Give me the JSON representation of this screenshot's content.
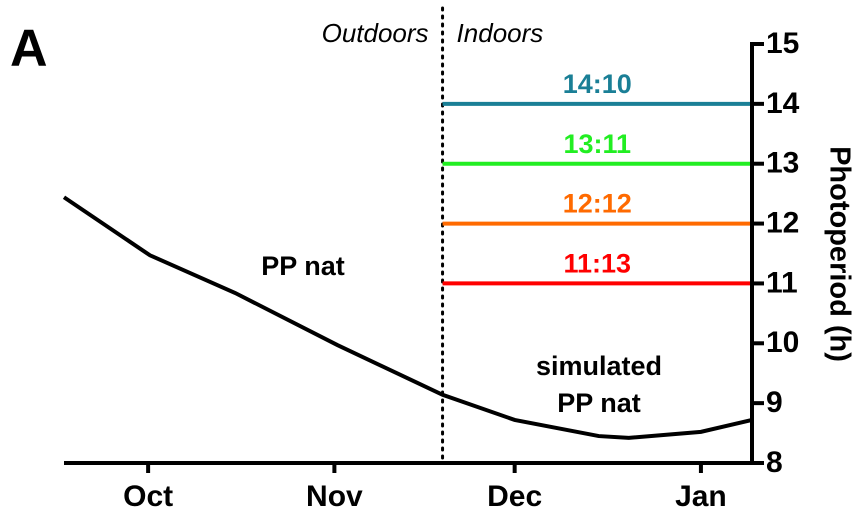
{
  "chart_data": {
    "type": "line",
    "panel_label": "A",
    "ylabel": "Photoperiod (h)",
    "xlim": [
      -14,
      100.5
    ],
    "xticks": [
      {
        "value": 0,
        "label": "Oct"
      },
      {
        "value": 31,
        "label": "Nov"
      },
      {
        "value": 61,
        "label": "Dec"
      },
      {
        "value": 92,
        "label": "Jan"
      }
    ],
    "ylim": [
      8,
      15
    ],
    "yticks": [
      8,
      9,
      10,
      11,
      12,
      13,
      14,
      15
    ],
    "divider_x": 49,
    "divider_labels": [
      "Outdoors",
      "Indoors"
    ],
    "annotations": [
      "PP nat",
      "simulated",
      "PP nat"
    ],
    "series": [
      {
        "x": [
          -14,
          0.3,
          14.5,
          31.5,
          49,
          61,
          75,
          80,
          92,
          100.5
        ],
        "values": [
          12.44,
          11.47,
          10.84,
          9.97,
          9.14,
          8.72,
          8.45,
          8.42,
          8.52,
          8.72
        ],
        "color": "#000000"
      },
      {
        "name": "14:10",
        "x": [
          49,
          100.5
        ],
        "values": [
          14,
          14
        ],
        "color": "#1a7f96"
      },
      {
        "name": "13:11",
        "x": [
          49,
          100.5
        ],
        "values": [
          13,
          13
        ],
        "color": "#22ee22"
      },
      {
        "name": "12:12",
        "x": [
          49,
          100.5
        ],
        "values": [
          12,
          12
        ],
        "color": "#ff6a00"
      },
      {
        "name": "11:13",
        "x": [
          49,
          100.5
        ],
        "values": [
          11,
          11
        ],
        "color": "#ff0000"
      }
    ]
  }
}
